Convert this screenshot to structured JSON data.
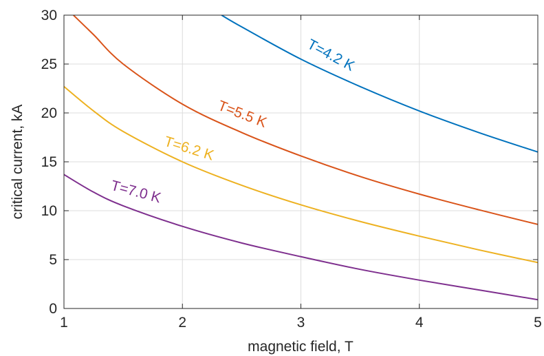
{
  "chart_data": {
    "type": "line",
    "xlabel": "magnetic field, T",
    "ylabel": "critical current, kA",
    "xlim": [
      1,
      5
    ],
    "ylim": [
      0,
      30
    ],
    "xticks": [
      1,
      2,
      3,
      4,
      5
    ],
    "yticks": [
      0,
      5,
      10,
      15,
      20,
      25,
      30
    ],
    "grid": true,
    "series": [
      {
        "name": "T=4.2 K",
        "color": "#0072BD",
        "x": [
          2.33,
          2.5,
          3.0,
          3.5,
          4.0,
          4.5,
          5.0
        ],
        "y": [
          30.0,
          28.8,
          25.5,
          22.7,
          20.2,
          18.0,
          16.0
        ]
      },
      {
        "name": "T=5.5 K",
        "color": "#D95319",
        "x": [
          1.08,
          1.25,
          1.5,
          2.0,
          2.5,
          3.0,
          3.5,
          4.0,
          4.5,
          5.0
        ],
        "y": [
          30.0,
          28.0,
          25.0,
          20.9,
          18.0,
          15.6,
          13.5,
          11.7,
          10.1,
          8.6
        ]
      },
      {
        "name": "T=6.2 K",
        "color": "#EDB120",
        "x": [
          1.0,
          1.25,
          1.5,
          2.0,
          2.5,
          3.0,
          3.5,
          4.0,
          4.5,
          5.0
        ],
        "y": [
          22.7,
          20.2,
          18.1,
          15.0,
          12.6,
          10.6,
          8.9,
          7.4,
          6.0,
          4.7
        ]
      },
      {
        "name": "T=7.0 K",
        "color": "#7E2F8E",
        "x": [
          1.0,
          1.25,
          1.5,
          2.0,
          2.5,
          3.0,
          3.5,
          4.0,
          4.5,
          5.0
        ],
        "y": [
          13.7,
          11.9,
          10.5,
          8.4,
          6.7,
          5.3,
          4.0,
          2.9,
          1.9,
          0.9
        ]
      }
    ]
  }
}
